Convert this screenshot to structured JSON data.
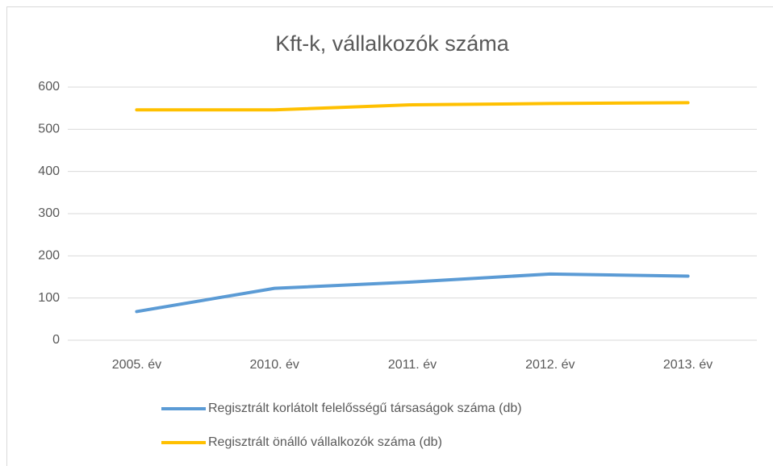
{
  "chart_data": {
    "type": "line",
    "title": "Kft-k, vállalkozók száma",
    "categories": [
      "2005. év",
      "2010. év",
      "2011. év",
      "2012. év",
      "2013. év"
    ],
    "series": [
      {
        "name": "Regisztrált korlátolt felelősségű társaságok száma (db)",
        "color": "#5b9bd5",
        "values": [
          68,
          123,
          138,
          157,
          152
        ]
      },
      {
        "name": "Regisztrált önálló vállalkozók száma (db)",
        "color": "#ffc000",
        "values": [
          546,
          546,
          558,
          561,
          563
        ]
      }
    ],
    "ylim": [
      0,
      600
    ],
    "yticks": [
      0,
      100,
      200,
      300,
      400,
      500,
      600
    ],
    "grid": true,
    "legend": "bottom"
  }
}
